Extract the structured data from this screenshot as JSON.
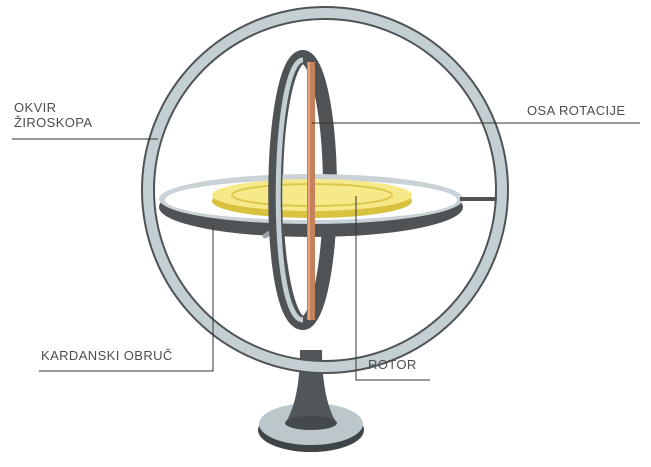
{
  "labels": {
    "frame_line1": "OKVIR",
    "frame_line2": "ŽIROSKOPA",
    "spin_axis": "OSA ROTACIJE",
    "gimbal": "KARDANSKI OBRUČ",
    "rotor": "ROTOR"
  },
  "colors": {
    "outer_ring_face": "#c4cfd4",
    "outer_ring_edge": "#4f5356",
    "gimbal_ring": "#4f5356",
    "gimbal_ring_top": "#c9d2d6",
    "rotor_face": "#f6e98a",
    "rotor_rim": "#d9c23f",
    "axle": "#c8805a",
    "stand": "#51565a",
    "callout_line": "#333333",
    "label_text": "#4d4d4d"
  }
}
